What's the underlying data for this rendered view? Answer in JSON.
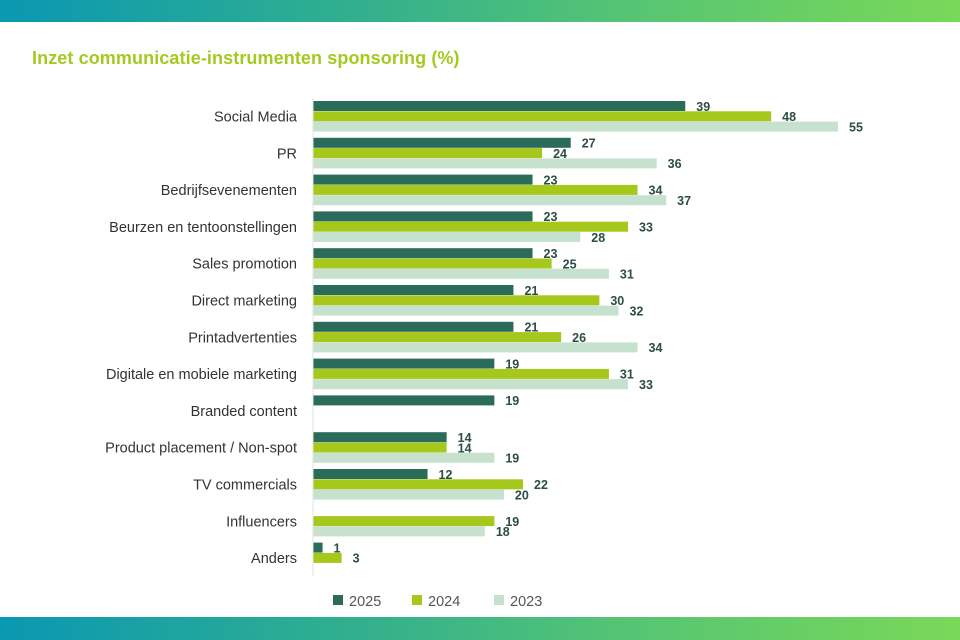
{
  "chart_data": {
    "type": "bar",
    "orientation": "horizontal",
    "title": "Inzet communicatie-instrumenten sponsoring (%)",
    "categories": [
      "Social Media",
      "PR",
      "Bedrijfsevenementen",
      "Beurzen en tentoonstellingen",
      "Sales promotion",
      "Direct marketing",
      "Printadvertenties",
      "Digitale en mobiele marketing",
      "Branded content",
      "Product placement / Non-spot",
      "TV commercials",
      "Influencers",
      "Anders"
    ],
    "series": [
      {
        "name": "2025",
        "color": "#2a6b5a",
        "values": [
          39,
          27,
          23,
          23,
          23,
          21,
          21,
          19,
          19,
          14,
          12,
          null,
          1
        ]
      },
      {
        "name": "2024",
        "color": "#a6c81c",
        "values": [
          48,
          24,
          34,
          33,
          25,
          30,
          26,
          31,
          null,
          14,
          22,
          19,
          3
        ]
      },
      {
        "name": "2023",
        "color": "#c6e1cd",
        "values": [
          55,
          36,
          37,
          28,
          31,
          32,
          34,
          33,
          null,
          19,
          20,
          18,
          null
        ]
      }
    ],
    "xlim": [
      0,
      55
    ],
    "grid": false,
    "legend": "bottom",
    "data_labels": true
  }
}
